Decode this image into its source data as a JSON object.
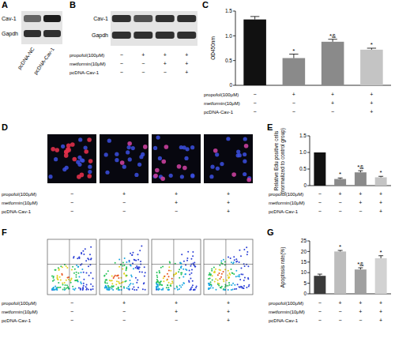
{
  "chart_data": [
    {
      "panel": "C",
      "type": "bar",
      "ylabel": [
        "OD450nm"
      ],
      "categories": [
        null,
        null,
        null,
        null
      ],
      "values": [
        1.33,
        0.55,
        0.88,
        0.72
      ],
      "errors": [
        0.06,
        0.08,
        0.05,
        0.03
      ],
      "annotations": [
        null,
        "*",
        "*&",
        "*"
      ],
      "colors": [
        "#111111",
        "#8a8a8a",
        "#8a8a8a",
        "#c4c4c4"
      ],
      "ylim": [
        0,
        1.5
      ],
      "yticks": [
        0,
        0.5,
        {
          "value": 1,
          "label": "1.0"
        },
        1.5
      ],
      "conditions": [
        {
          "label": "propofol(100μM)",
          "values": [
            "−",
            "+",
            "+",
            "+"
          ]
        },
        {
          "label": "metformin(10μM)",
          "values": [
            "−",
            "−",
            "+",
            "+"
          ]
        },
        {
          "label": "pcDNA-Cav-1",
          "values": [
            "−",
            "−",
            "−",
            "+"
          ]
        }
      ]
    },
    {
      "panel": "E",
      "type": "bar",
      "ylabel": [
        "Relative Edu positive cells",
        "(normalized to control group)"
      ],
      "categories": [
        null,
        null,
        null,
        null
      ],
      "values": [
        1.0,
        0.2,
        0.4,
        0.25
      ],
      "errors": [
        0,
        0.03,
        0.05,
        0.03
      ],
      "annotations": [
        null,
        "*",
        "*&",
        "*"
      ],
      "colors": [
        "#111111",
        "#8a8a8a",
        "#8a8a8a",
        "#c4c4c4"
      ],
      "ylim": [
        0,
        1.5
      ],
      "yticks": [
        0,
        0.5,
        {
          "value": 1,
          "label": "1.0"
        },
        1.5
      ],
      "conditions": [
        {
          "label": "propofol(100μM)",
          "values": [
            "−",
            "+",
            "+",
            "+"
          ]
        },
        {
          "label": "metformin(10μM)",
          "values": [
            "−",
            "−",
            "+",
            "+"
          ]
        },
        {
          "label": "pcDNA-Cav-1",
          "values": [
            "−",
            "−",
            "−",
            "+"
          ]
        }
      ]
    },
    {
      "panel": "G",
      "type": "bar",
      "ylabel": [
        "Apoptosis rate(%)"
      ],
      "categories": [
        null,
        null,
        null,
        null
      ],
      "values": [
        8.5,
        20,
        11.5,
        16.8
      ],
      "errors": [
        0.8,
        0.5,
        0.8,
        1.2
      ],
      "annotations": [
        null,
        "*",
        "*&",
        "*"
      ],
      "colors": [
        "#3a3a3a",
        "#bdbdbd",
        "#a0a0a0",
        "#d2d2d2"
      ],
      "ylim": [
        0,
        25
      ],
      "yticks": [
        0,
        5,
        10,
        15,
        20,
        25
      ],
      "conditions": [
        {
          "label": "propofol(100μM)",
          "values": [
            "−",
            "+",
            "+",
            "+"
          ]
        },
        {
          "label": "metformin(10μM)",
          "values": [
            "−",
            "−",
            "+",
            "+"
          ]
        },
        {
          "label": "pcDNA-Cav-1",
          "values": [
            "−",
            "−",
            "−",
            "+"
          ]
        }
      ]
    }
  ],
  "western_blots": [
    {
      "panel": "A",
      "bands": [
        "Cav-1",
        "Gapdh"
      ],
      "lanes": [
        "pcDNA-NC",
        "pcDNA-Cav-1"
      ]
    },
    {
      "panel": "B",
      "bands": [
        "Cav-1",
        "Gapdh"
      ],
      "conditions": [
        {
          "label": "propofol(100μM)",
          "values": [
            "−",
            "+",
            "+",
            "+"
          ]
        },
        {
          "label": "metformin(10μM)",
          "values": [
            "−",
            "−",
            "+",
            "+"
          ]
        },
        {
          "label": "pcDNA-Cav-1",
          "values": [
            "−",
            "−",
            "−",
            "+"
          ]
        }
      ]
    }
  ],
  "edu_images": {
    "panel": "D",
    "conditions": [
      {
        "label": "propofol(100μM)",
        "values": [
          "−",
          "+",
          "+",
          "+"
        ]
      },
      {
        "label": "metformin(10μM)",
        "values": [
          "−",
          "−",
          "+",
          "+"
        ]
      },
      {
        "label": "pcDNA-Cav-1",
        "values": [
          "−",
          "−",
          "−",
          "+"
        ]
      }
    ]
  },
  "flow_cytometry": {
    "panel": "F",
    "conditions": [
      {
        "label": "propofol(100μM)",
        "values": [
          "−",
          "+",
          "+",
          "+"
        ]
      },
      {
        "label": "metformin(10μM)",
        "values": [
          "−",
          "−",
          "+",
          "+"
        ]
      },
      {
        "label": "pcDNA-Cav-1",
        "values": [
          "−",
          "−",
          "−",
          "+"
        ]
      }
    ]
  }
}
